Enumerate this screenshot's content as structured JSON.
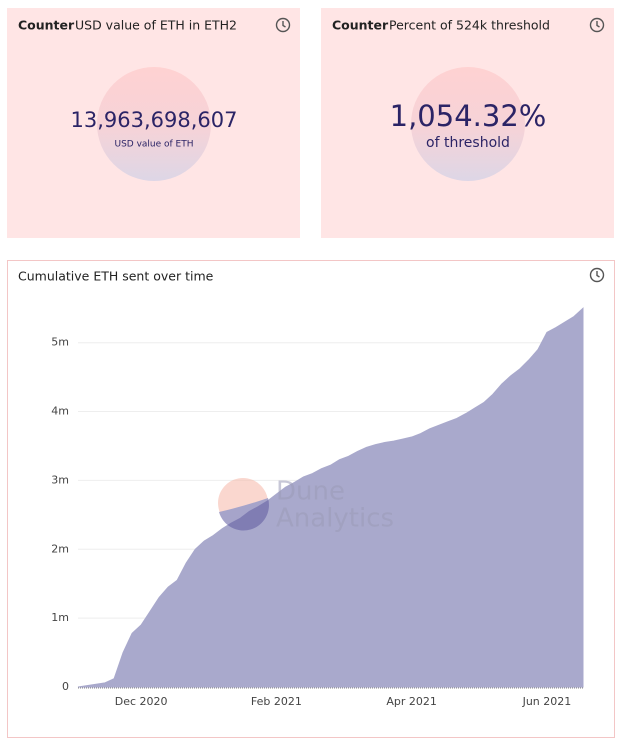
{
  "counters": [
    {
      "label": "Counter",
      "title": "USD value of ETH in ETH2",
      "value": "13,963,698,607",
      "caption": "USD value of ETH"
    },
    {
      "label": "Counter",
      "title": "Percent of 524k threshold",
      "value": "1,054.32%",
      "caption": "of threshold"
    }
  ],
  "watermark": [
    "Dune",
    "Analytics"
  ],
  "chart_data": {
    "type": "area",
    "title": "Cumulative ETH sent over time",
    "color": "#a9a9cc",
    "categories": [
      null,
      null,
      null,
      null,
      null,
      null,
      null,
      "Dec 2020",
      null,
      null,
      null,
      null,
      null,
      null,
      null,
      null,
      null,
      null,
      null,
      null,
      null,
      null,
      "Feb 2021",
      null,
      null,
      null,
      null,
      null,
      null,
      null,
      null,
      null,
      null,
      null,
      null,
      null,
      null,
      "Apr 2021",
      null,
      null,
      null,
      null,
      null,
      null,
      null,
      null,
      null,
      null,
      null,
      null,
      null,
      null,
      "Jun 2021",
      null,
      null,
      null,
      null
    ],
    "values": [
      0,
      20000,
      40000,
      60000,
      120000,
      500000,
      780000,
      900000,
      1100000,
      1300000,
      1450000,
      1550000,
      1800000,
      2000000,
      2120000,
      2200000,
      2300000,
      2380000,
      2450000,
      2550000,
      2620000,
      2700000,
      2800000,
      2900000,
      2970000,
      3050000,
      3100000,
      3170000,
      3220000,
      3300000,
      3350000,
      3420000,
      3480000,
      3520000,
      3550000,
      3570000,
      3600000,
      3630000,
      3680000,
      3750000,
      3800000,
      3850000,
      3900000,
      3970000,
      4050000,
      4130000,
      4250000,
      4400000,
      4520000,
      4620000,
      4750000,
      4900000,
      5150000,
      5220000,
      5300000,
      5380000,
      5500000
    ],
    "ylim": [
      0,
      5620000
    ],
    "yticks": [
      0,
      {
        "value": 1000000,
        "label": "1m"
      },
      {
        "value": 2000000,
        "label": "2m"
      },
      {
        "value": 3000000,
        "label": "3m"
      },
      {
        "value": 4000000,
        "label": "4m"
      },
      {
        "value": 5000000,
        "label": "5m"
      }
    ],
    "grid": true
  }
}
